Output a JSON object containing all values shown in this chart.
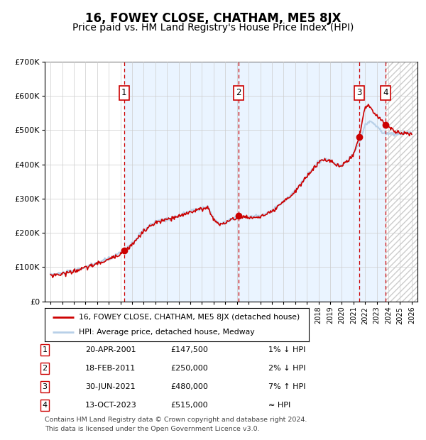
{
  "title": "16, FOWEY CLOSE, CHATHAM, ME5 8JX",
  "subtitle": "Price paid vs. HM Land Registry's House Price Index (HPI)",
  "xlim": [
    1994.5,
    2026.5
  ],
  "ylim": [
    0,
    700000
  ],
  "yticks": [
    0,
    100000,
    200000,
    300000,
    400000,
    500000,
    600000,
    700000
  ],
  "ytick_labels": [
    "£0",
    "£100K",
    "£200K",
    "£300K",
    "£400K",
    "£500K",
    "£600K",
    "£700K"
  ],
  "hpi_color": "#b8d0e8",
  "price_color": "#cc0000",
  "sale_points": [
    {
      "year": 2001.3,
      "price": 147500,
      "label": "1"
    },
    {
      "year": 2011.12,
      "price": 250000,
      "label": "2"
    },
    {
      "year": 2021.5,
      "price": 480000,
      "label": "3"
    },
    {
      "year": 2023.78,
      "price": 515000,
      "label": "4"
    }
  ],
  "vline_color": "#cc0000",
  "background_shaded": "#ddeeff",
  "legend_items": [
    "16, FOWEY CLOSE, CHATHAM, ME5 8JX (detached house)",
    "HPI: Average price, detached house, Medway"
  ],
  "table_rows": [
    {
      "num": "1",
      "date": "20-APR-2001",
      "price": "£147,500",
      "hpi": "1% ↓ HPI"
    },
    {
      "num": "2",
      "date": "18-FEB-2011",
      "price": "£250,000",
      "hpi": "2% ↓ HPI"
    },
    {
      "num": "3",
      "date": "30-JUN-2021",
      "price": "£480,000",
      "hpi": "7% ↑ HPI"
    },
    {
      "num": "4",
      "date": "13-OCT-2023",
      "price": "£515,000",
      "hpi": "≈ HPI"
    }
  ],
  "footnote1": "Contains HM Land Registry data © Crown copyright and database right 2024.",
  "footnote2": "This data is licensed under the Open Government Licence v3.0.",
  "title_fontsize": 12,
  "subtitle_fontsize": 10,
  "tick_fontsize": 8,
  "label_fontsize": 8.5
}
